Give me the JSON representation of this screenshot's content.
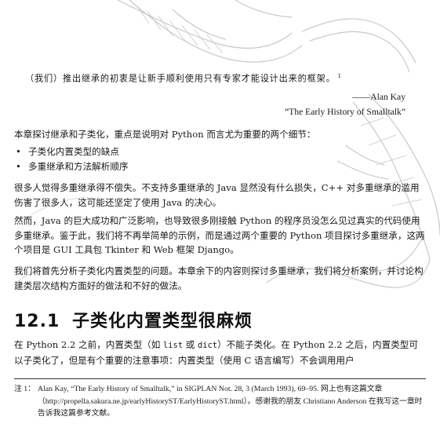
{
  "epigraph": {
    "quote": "（我们）推出继承的初衷是让新手顺利使用只有专家才能设计出来的框架。",
    "note_ref": "1",
    "author": "——Alan Kay",
    "source": "“The Early History of Smalltalk”"
  },
  "intro": "本章探讨继承和子类化，重点是说明对 Python 而言尤为重要的两个细节：",
  "bullets": [
    "子类化内置类型的缺点",
    "多重继承和方法解析顺序"
  ],
  "bullet_symbol": "•",
  "paragraphs": [
    "很多人觉得多重继承得不偿失。不支持多重继承的 Java 显然没有什么损失，C++ 对多重继承的滥用伤害了很多人，这可能还坚定了使用 Java 的决心。",
    "然而，Java 的巨大成功和广泛影响，也导致很多刚接触 Python 的程序员没怎么见过真实的代码使用多重继承。鉴于此，我们将不再举简单的示例，而是通过两个重要的 Python 项目探讨多重继承，这两个项目是 GUI 工具包 Tkinter 和 Web 框架 Django。",
    "我们将首先分析子类化内置类型的问题。本章余下的内容则探讨多重继承，我们将分析案例，并讨论构建类层次结构方面好的做法和不好的做法。"
  ],
  "section": {
    "number": "12.1",
    "title": "子类化内置类型很麻烦"
  },
  "p5": {
    "part1": "在 Python 2.2 之前，内置类型（如 ",
    "code1": "list",
    "part2": " 或 ",
    "code2": "dict",
    "part3": "）不能子类化。在 Python 2.2 之后，内置类型可以子类化了，但是有个重要的注意事项：内置类型（使用 C 语言编写）不会调用用户"
  },
  "footnote": {
    "label": "注 1：",
    "text": "Alan Kay, “The Early History of Smalltalk,” in SIGPLAN Not. 28, 3 (March 1993), 69–95. 网上也有这篇文章（http://propella.sakura.ne.jp/earlyHistoryST/EarlyHistoryST.html）。感谢我的朋友 Christiano Anderson 在我写这一章时告诉我这篇参考文献。"
  }
}
